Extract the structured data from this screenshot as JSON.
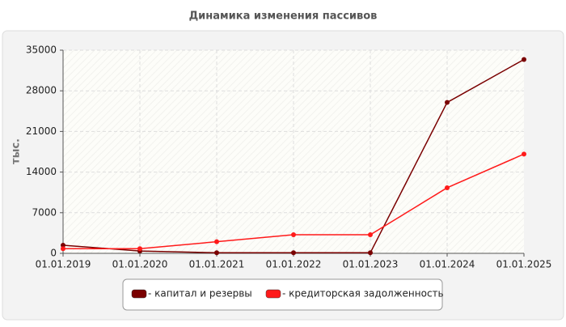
{
  "chart_data": {
    "type": "line",
    "title": "Динамика изменения пассивов",
    "y_label": "тыс.",
    "categories": [
      "01.01.2019",
      "01.01.2020",
      "01.01.2021",
      "01.01.2022",
      "01.01.2023",
      "01.01.2024",
      "01.01.2025"
    ],
    "series": [
      {
        "name": "- капитал и резервы",
        "color": "#7a0000",
        "values": [
          1400,
          400,
          100,
          100,
          100,
          26000,
          33400
        ]
      },
      {
        "name": "- кредиторская задолженность",
        "color": "#ff1a1a",
        "values": [
          800,
          800,
          2000,
          3200,
          3200,
          11300,
          17100
        ]
      }
    ],
    "ylim": [
      0,
      35000
    ],
    "yticks": [
      0,
      7000,
      14000,
      21000,
      28000,
      35000
    ],
    "grid": true
  }
}
